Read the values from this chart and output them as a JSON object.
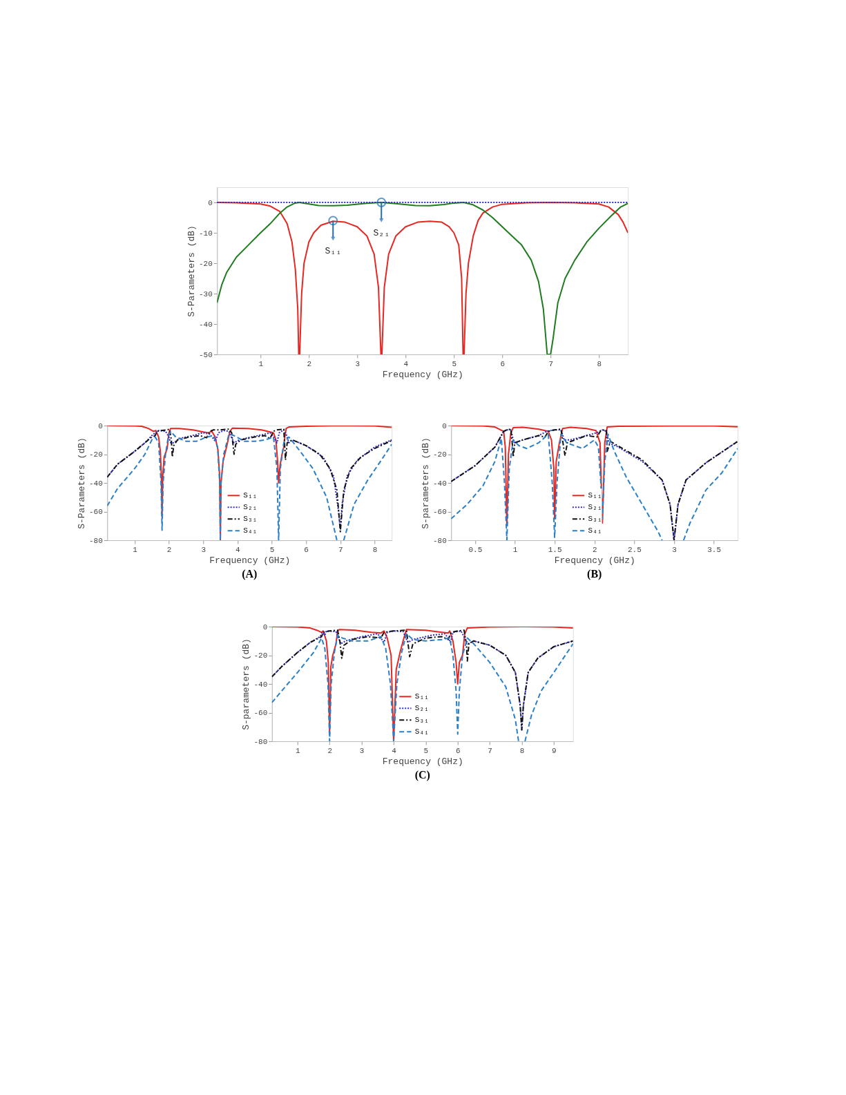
{
  "chart_data": [
    {
      "type": "line",
      "xlabel": "Frequency (GHz)",
      "ylabel": "S-Parameters (dB)",
      "xlim": [
        0.1,
        8.6
      ],
      "ylim": [
        -50,
        5
      ],
      "xticks": [
        1,
        2,
        3,
        4,
        5,
        6,
        7,
        8
      ],
      "yticks": [
        -50,
        -40,
        -30,
        -20,
        -10,
        0
      ],
      "grid": false,
      "legend": false,
      "annotations": [
        {
          "text": "S₁₁",
          "x": 2.5,
          "y": -6
        },
        {
          "text": "S₂₁",
          "x": 3.5,
          "y": 0
        }
      ],
      "series": [
        {
          "color": "#e8251f",
          "line_style": "solid",
          "x": [
            0.1,
            0.5,
            1.0,
            1.2,
            1.4,
            1.55,
            1.65,
            1.72,
            1.77,
            1.79,
            1.81,
            1.85,
            1.9,
            2.0,
            2.1,
            2.25,
            2.5,
            2.75,
            3.0,
            3.2,
            3.35,
            3.44,
            3.49,
            3.51,
            3.56,
            3.65,
            3.8,
            4.0,
            4.25,
            4.5,
            4.75,
            4.9,
            5.0,
            5.1,
            5.16,
            5.19,
            5.21,
            5.25,
            5.3,
            5.4,
            5.5,
            5.6,
            5.8,
            6.0,
            6.5,
            7.0,
            7.5,
            8.0,
            8.2,
            8.4,
            8.5,
            8.6
          ],
          "values": [
            0,
            -0.1,
            -0.5,
            -1.2,
            -3,
            -7,
            -13,
            -22,
            -35,
            -50,
            -50,
            -30,
            -20,
            -13,
            -10,
            -7.5,
            -6.2,
            -6.5,
            -8,
            -11,
            -17,
            -28,
            -50,
            -50,
            -28,
            -17,
            -11,
            -8,
            -6.5,
            -6.2,
            -6.5,
            -8,
            -10,
            -14,
            -25,
            -50,
            -50,
            -30,
            -20,
            -11,
            -6,
            -3.5,
            -1.5,
            -0.6,
            -0.1,
            0,
            -0.1,
            -0.5,
            -1.5,
            -4,
            -6.5,
            -10
          ]
        },
        {
          "color": "#1e7b1e",
          "line_style": "solid",
          "x": [
            0.1,
            0.2,
            0.3,
            0.5,
            0.75,
            1.0,
            1.2,
            1.4,
            1.55,
            1.7,
            1.8,
            2.0,
            2.2,
            2.5,
            2.8,
            3.2,
            3.5,
            3.8,
            4.2,
            4.5,
            4.8,
            5.0,
            5.2,
            5.4,
            5.6,
            5.8,
            6.0,
            6.2,
            6.4,
            6.6,
            6.75,
            6.85,
            6.93,
            7.0,
            7.05,
            7.15,
            7.3,
            7.5,
            7.75,
            8.0,
            8.25,
            8.45,
            8.6
          ],
          "values": [
            -33,
            -27,
            -23,
            -18,
            -14,
            -10,
            -7,
            -3.5,
            -1.5,
            -0.3,
            0,
            -0.5,
            -1,
            -1.1,
            -0.9,
            -0.3,
            0,
            -0.4,
            -1,
            -1.1,
            -0.7,
            -0.2,
            0,
            -0.8,
            -2.5,
            -5,
            -8,
            -11,
            -14,
            -19,
            -26,
            -35,
            -50,
            -50,
            -45,
            -33,
            -25,
            -19,
            -13,
            -8.5,
            -4.5,
            -1.5,
            -0.3
          ]
        },
        {
          "color": "#2b2bd0",
          "line_style": "dotted",
          "x": [
            0.1,
            8.6
          ],
          "values": [
            0,
            0
          ]
        }
      ]
    },
    {
      "type": "line",
      "title": "(A)",
      "xlabel": "Frequency (GHz)",
      "ylabel": "S-Parameters (dB)",
      "xlim": [
        0.2,
        8.5
      ],
      "ylim": [
        -80,
        0
      ],
      "xticks": [
        1,
        2,
        3,
        4,
        5,
        6,
        7,
        8
      ],
      "yticks": [
        -80,
        -60,
        -40,
        -20,
        0
      ],
      "grid": false,
      "legend": "bottom",
      "series": [
        {
          "name": "S₁₁",
          "color": "#e8251f",
          "line_style": "solid",
          "x": [
            0.2,
            1.0,
            1.2,
            1.4,
            1.55,
            1.62,
            1.7,
            1.75,
            1.78,
            1.8,
            1.82,
            1.86,
            1.95,
            2.0,
            2.05,
            2.3,
            2.7,
            3.0,
            3.15,
            3.25,
            3.35,
            3.43,
            3.48,
            3.5,
            3.52,
            3.58,
            3.7,
            3.78,
            3.85,
            4.3,
            4.7,
            4.95,
            5.05,
            5.12,
            5.17,
            5.2,
            5.24,
            5.3,
            5.35,
            5.38,
            5.42,
            5.5,
            6.0,
            7.0,
            8.0,
            8.5
          ],
          "values": [
            0,
            -0.2,
            -0.5,
            -2,
            -4,
            -3.5,
            -8,
            -18,
            -35,
            -65,
            -35,
            -22,
            -16,
            -5,
            -2,
            -2,
            -3,
            -4.5,
            -5,
            -4,
            -8,
            -17,
            -35,
            -80,
            -40,
            -25,
            -13,
            -4,
            -1.8,
            -2,
            -3,
            -4.5,
            -5,
            -10,
            -25,
            -40,
            -28,
            -20,
            -15,
            -8,
            -2,
            -1,
            -0.5,
            0,
            -0.3,
            -1.2
          ]
        },
        {
          "name": "S₂₁",
          "color": "#2b2bd0",
          "line_style": "dotted",
          "x": [
            0.2,
            0.5,
            1.0,
            1.3,
            1.5,
            1.6,
            1.7,
            1.9,
            2.0,
            2.05,
            2.15,
            2.3,
            2.6,
            3.0,
            3.2,
            3.35,
            3.45,
            3.6,
            3.75,
            3.82,
            3.9,
            4.05,
            4.4,
            4.8,
            4.95,
            5.05,
            5.15,
            5.22,
            5.35,
            5.42,
            5.5,
            5.6,
            6.0,
            6.5,
            6.8,
            6.95,
            7.0,
            7.05,
            7.2,
            7.5,
            8.0,
            8.5
          ],
          "values": [
            -36,
            -27,
            -18,
            -12,
            -7,
            -5,
            -3.5,
            -4,
            -8,
            -12,
            -12,
            -9,
            -7.5,
            -5,
            -6,
            -11,
            -5,
            -3.5,
            -4,
            -8,
            -12,
            -10,
            -8,
            -6,
            -5,
            -8,
            -12,
            -5,
            -3,
            -6,
            -12,
            -10,
            -14,
            -22,
            -35,
            -60,
            -72,
            -55,
            -35,
            -24,
            -15,
            -10
          ]
        },
        {
          "name": "S₃₁",
          "color": "#111111",
          "line_style": "dashdot",
          "x": [
            0.2,
            0.5,
            1.0,
            1.3,
            1.5,
            1.6,
            1.65,
            1.75,
            1.95,
            2.02,
            2.07,
            2.1,
            2.14,
            2.25,
            2.6,
            2.9,
            3.1,
            3.2,
            3.3,
            3.5,
            3.75,
            3.83,
            3.9,
            3.95,
            4.1,
            4.5,
            4.8,
            4.95,
            5.05,
            5.15,
            5.35,
            5.4,
            5.45,
            5.6,
            6.0,
            6.4,
            6.7,
            6.9,
            7.0,
            7.1,
            7.3,
            7.6,
            8.0,
            8.5
          ],
          "values": [
            -36,
            -27,
            -18,
            -12,
            -8,
            -7,
            -4,
            -3.5,
            -3,
            -2.5,
            -10,
            -22,
            -14,
            -10,
            -8,
            -7,
            -8.5,
            -4,
            -3,
            -3,
            -2.5,
            -5,
            -20,
            -13,
            -10,
            -8,
            -7,
            -9,
            -4,
            -3,
            -2.5,
            -24,
            -12,
            -10,
            -14,
            -20,
            -30,
            -45,
            -74,
            -45,
            -30,
            -22,
            -16,
            -10.5
          ]
        },
        {
          "name": "S₄₁",
          "color": "#2a7fc9",
          "line_style": "dashed",
          "x": [
            0.2,
            0.5,
            1.0,
            1.3,
            1.5,
            1.6,
            1.7,
            1.77,
            1.8,
            1.83,
            1.9,
            1.98,
            2.05,
            2.2,
            2.5,
            2.8,
            3.1,
            3.3,
            3.42,
            3.48,
            3.5,
            3.52,
            3.6,
            3.75,
            3.9,
            4.2,
            4.5,
            4.8,
            5.05,
            5.15,
            5.2,
            5.25,
            5.35,
            5.5,
            5.8,
            6.2,
            6.6,
            6.9,
            7.0,
            7.1,
            7.4,
            7.8,
            8.2,
            8.5
          ],
          "values": [
            -56,
            -44,
            -30,
            -20,
            -10,
            -8,
            -12,
            -40,
            -73,
            -40,
            -20,
            -8,
            -4,
            -8,
            -11,
            -11,
            -8,
            -7,
            -15,
            -40,
            -80,
            -40,
            -20,
            -6,
            -7,
            -11,
            -11,
            -10,
            -8,
            -30,
            -80,
            -30,
            -12,
            -8,
            -17,
            -30,
            -50,
            -80,
            null,
            -80,
            -55,
            -38,
            -24,
            -13
          ]
        }
      ]
    },
    {
      "type": "line",
      "title": "(B)",
      "xlabel": "Frequency (GHz)",
      "ylabel": "S-parameters (dB)",
      "xlim": [
        0.2,
        3.8
      ],
      "ylim": [
        -80,
        0
      ],
      "xticks": [
        0.5,
        1,
        1.5,
        2,
        2.5,
        3,
        3.5
      ],
      "yticks": [
        -80,
        -60,
        -40,
        -20,
        0
      ],
      "grid": false,
      "legend": "bottom",
      "series": [
        {
          "name": "S₁₁",
          "color": "#e8251f",
          "line_style": "solid",
          "x": [
            0.2,
            0.6,
            0.75,
            0.82,
            0.86,
            0.88,
            0.9,
            0.92,
            0.95,
            0.98,
            1.1,
            1.3,
            1.42,
            1.46,
            1.49,
            1.5,
            1.52,
            1.56,
            1.6,
            1.7,
            1.9,
            2.02,
            2.07,
            2.1,
            2.13,
            2.16,
            2.3,
            3.0,
            3.5,
            3.8
          ],
          "values": [
            0,
            -0.2,
            -1,
            -3,
            -4,
            -15,
            -70,
            -20,
            -5,
            -1.5,
            -1.2,
            -2.5,
            -4,
            -10,
            -30,
            -65,
            -25,
            -12,
            -2,
            -1.2,
            -2,
            -3.5,
            -12,
            -68,
            -12,
            -1,
            -0.5,
            -0.2,
            -0.3,
            -0.8
          ]
        },
        {
          "name": "S₂₁",
          "color": "#2b2bd0",
          "line_style": "dotted",
          "x": [
            0.2,
            0.5,
            0.75,
            0.82,
            0.86,
            0.9,
            0.95,
            0.98,
            1.0,
            1.1,
            1.3,
            1.4,
            1.5,
            1.58,
            1.62,
            1.7,
            1.9,
            2.03,
            2.1,
            2.15,
            2.18,
            2.3,
            2.6,
            2.85,
            2.95,
            3.0,
            3.05,
            3.15,
            3.4,
            3.8
          ],
          "values": [
            -39,
            -28,
            -15,
            -8,
            -4,
            -3,
            -3,
            -10,
            -12,
            -10,
            -7,
            -4,
            -3,
            -3,
            -10,
            -10,
            -7,
            -5,
            -3,
            -4,
            -12,
            -15,
            -25,
            -38,
            -55,
            -80,
            -55,
            -38,
            -26,
            -11
          ]
        },
        {
          "name": "S₃₁",
          "color": "#111111",
          "line_style": "dashdot",
          "x": [
            0.2,
            0.5,
            0.75,
            0.82,
            0.86,
            0.9,
            0.95,
            0.97,
            0.98,
            1.0,
            1.1,
            1.3,
            1.38,
            1.42,
            1.5,
            1.58,
            1.61,
            1.63,
            1.66,
            1.9,
            2.03,
            2.08,
            2.15,
            2.16,
            2.2,
            2.6,
            2.85,
            2.95,
            3.0,
            3.05,
            3.15,
            3.4,
            3.8
          ],
          "values": [
            -39,
            -28,
            -15,
            -8,
            -4,
            -3,
            -2.5,
            -14,
            -22,
            -12,
            -10,
            -7,
            -8,
            -4,
            -3,
            -2.5,
            -14,
            -21,
            -12,
            -7,
            -8,
            -3.5,
            -3,
            -18,
            -11,
            -24,
            -38,
            -55,
            -80,
            -55,
            -38,
            -26,
            -11
          ]
        },
        {
          "name": "S₄₁",
          "color": "#2a7fc9",
          "line_style": "dashed",
          "x": [
            0.2,
            0.4,
            0.6,
            0.75,
            0.83,
            0.87,
            0.9,
            0.93,
            0.98,
            1.05,
            1.15,
            1.3,
            1.42,
            1.47,
            1.5,
            1.53,
            1.58,
            1.65,
            1.85,
            2.0,
            2.05,
            2.08,
            2.1,
            2.13,
            2.17,
            2.25,
            2.4,
            2.6,
            2.8,
            2.85,
            3.0,
            3.12,
            3.2,
            3.4,
            3.6,
            3.8
          ],
          "values": [
            -65,
            -55,
            -42,
            -25,
            -9,
            -40,
            -80,
            -30,
            -10,
            -14,
            -16,
            -12,
            -6,
            -40,
            -78,
            -40,
            -6,
            -12,
            -16,
            -10,
            -15,
            -40,
            -65,
            -25,
            -6,
            -18,
            -36,
            -55,
            -74,
            -80,
            null,
            -80,
            -68,
            -45,
            -33,
            -16
          ]
        }
      ]
    },
    {
      "type": "line",
      "title": "(C)",
      "xlabel": "Frequency (GHz)",
      "ylabel": "S-parameters (dB)",
      "xlim": [
        0.2,
        9.6
      ],
      "ylim": [
        -80,
        0
      ],
      "xticks": [
        1,
        2,
        3,
        4,
        5,
        6,
        7,
        8,
        9
      ],
      "yticks": [
        -80,
        -60,
        -40,
        -20,
        0
      ],
      "grid": false,
      "legend": "bottom",
      "series": [
        {
          "name": "S₁₁",
          "color": "#e8251f",
          "line_style": "solid",
          "x": [
            0.2,
            1.0,
            1.4,
            1.6,
            1.75,
            1.8,
            1.9,
            1.96,
            2.0,
            2.04,
            2.1,
            2.2,
            2.25,
            2.3,
            2.8,
            3.3,
            3.6,
            3.7,
            3.8,
            3.92,
            4.0,
            4.08,
            4.2,
            4.32,
            4.4,
            5.0,
            5.5,
            5.7,
            5.75,
            5.85,
            5.95,
            6.0,
            6.05,
            6.15,
            6.22,
            6.3,
            7.0,
            8.0,
            9.0,
            9.6
          ],
          "values": [
            0,
            -0.2,
            -1,
            -2.5,
            -4,
            -3,
            -10,
            -25,
            -75,
            -28,
            -20,
            -12,
            -3,
            -2,
            -2.5,
            -4,
            -4.5,
            -3,
            -8,
            -20,
            -80,
            -30,
            -18,
            -8,
            -2,
            -2.5,
            -4,
            -4.5,
            -3,
            -10,
            -25,
            -40,
            -25,
            -20,
            -5,
            -1,
            -0.3,
            0,
            -0.3,
            -1
          ]
        },
        {
          "name": "S₂₁",
          "color": "#2b2bd0",
          "line_style": "dotted",
          "x": [
            0.2,
            0.5,
            1.0,
            1.4,
            1.7,
            1.78,
            1.85,
            1.9,
            2.2,
            2.28,
            2.35,
            2.5,
            3.0,
            3.5,
            3.6,
            3.7,
            3.8,
            4.0,
            4.3,
            4.38,
            4.45,
            4.6,
            5.2,
            5.6,
            5.7,
            5.78,
            5.85,
            6.1,
            6.22,
            6.32,
            6.5,
            7.0,
            7.5,
            7.8,
            7.95,
            8.0,
            8.05,
            8.2,
            8.5,
            9.0,
            9.6
          ],
          "values": [
            -35,
            -28,
            -18,
            -11,
            -7,
            -4,
            -6,
            -3,
            -3.5,
            -8,
            -12,
            -10,
            -7,
            -5,
            -8,
            -11,
            -4,
            -3,
            -3.5,
            -8,
            -11,
            -9,
            -6,
            -5,
            -8,
            -11,
            -4,
            -3,
            -8,
            -12,
            -10,
            -13,
            -20,
            -32,
            -55,
            -72,
            -55,
            -32,
            -22,
            -14,
            -10
          ]
        },
        {
          "name": "S₃₁",
          "color": "#111111",
          "line_style": "dashdot",
          "x": [
            0.2,
            0.5,
            1.0,
            1.4,
            1.75,
            1.8,
            2.0,
            2.25,
            2.32,
            2.38,
            2.45,
            2.7,
            3.2,
            3.6,
            3.7,
            4.0,
            4.4,
            4.45,
            4.5,
            4.6,
            5.0,
            5.5,
            5.7,
            5.8,
            6.0,
            6.2,
            6.27,
            6.3,
            6.35,
            6.5,
            7.0,
            7.5,
            7.8,
            7.95,
            8.0,
            8.05,
            8.2,
            8.5,
            9.0,
            9.6
          ],
          "values": [
            -35,
            -28,
            -18,
            -11,
            -7,
            -4,
            -3,
            -2.5,
            -10,
            -22,
            -13,
            -9,
            -7,
            -8,
            -4,
            -3,
            -2.5,
            -12,
            -21,
            -12,
            -8,
            -7,
            -9,
            -4,
            -3,
            -2.5,
            -12,
            -24,
            -12,
            -10,
            -13,
            -20,
            -32,
            -55,
            -72,
            -55,
            -32,
            -22,
            -14,
            -10
          ]
        },
        {
          "name": "S₄₁",
          "color": "#2a7fc9",
          "line_style": "dashed",
          "x": [
            0.2,
            0.5,
            1.0,
            1.5,
            1.75,
            1.85,
            1.95,
            2.0,
            2.05,
            2.15,
            2.25,
            2.4,
            2.7,
            3.2,
            3.6,
            3.75,
            3.9,
            4.0,
            4.1,
            4.25,
            4.4,
            4.6,
            5.0,
            5.5,
            5.75,
            5.85,
            5.95,
            6.0,
            6.05,
            6.15,
            6.3,
            6.5,
            7.0,
            7.5,
            7.8,
            7.9,
            8.0,
            8.1,
            8.3,
            8.6,
            9.0,
            9.6
          ],
          "values": [
            -53,
            -45,
            -32,
            -18,
            -8,
            -15,
            -40,
            -80,
            -40,
            -18,
            -6,
            -8,
            -10,
            -10,
            -7,
            -15,
            -40,
            -80,
            -40,
            -18,
            -5,
            -9,
            -10,
            -9,
            -8,
            -20,
            -45,
            -75,
            -45,
            -20,
            -8,
            -12,
            -25,
            -42,
            -65,
            -80,
            null,
            -80,
            -62,
            -45,
            -32,
            -12
          ]
        }
      ]
    }
  ]
}
